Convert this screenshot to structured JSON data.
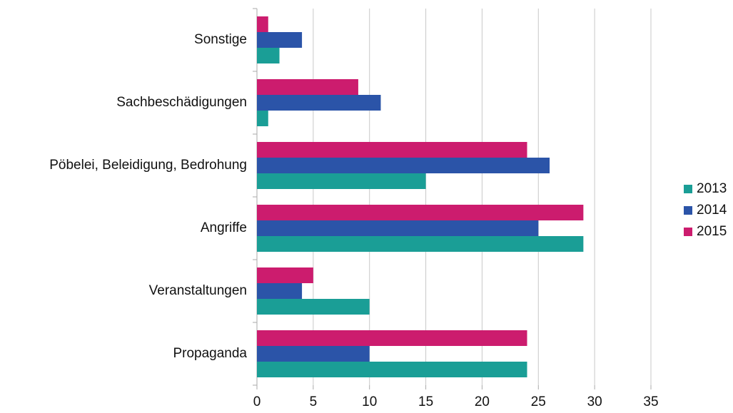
{
  "chart_data": {
    "type": "bar",
    "orientation": "horizontal",
    "categories": [
      "Sonstige",
      "Sachbeschädigungen",
      "Pöbelei, Beleidigung, Bedrohung",
      "Angriffe",
      "Veranstaltungen",
      "Propaganda"
    ],
    "series": [
      {
        "name": "2013",
        "color": "#1a9e96",
        "values": [
          2,
          1,
          15,
          29,
          10,
          24
        ]
      },
      {
        "name": "2014",
        "color": "#2b54a8",
        "values": [
          4,
          11,
          26,
          25,
          4,
          10
        ]
      },
      {
        "name": "2015",
        "color": "#cc1c6e",
        "values": [
          1,
          9,
          24,
          29,
          5,
          24
        ]
      }
    ],
    "xlim": [
      0,
      35
    ],
    "xticks": [
      0,
      5,
      10,
      15,
      20,
      25,
      30,
      35
    ],
    "grid": true,
    "legend": "right"
  }
}
